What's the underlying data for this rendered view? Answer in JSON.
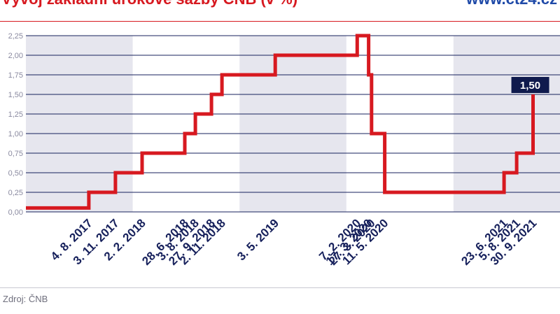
{
  "header": {
    "title": "Vývoj základní úrokové sazby ČNB (v %)",
    "brand": "www.ct24.cz"
  },
  "footer": {
    "source": "Zdroj: ČNB"
  },
  "colors": {
    "line": "#d71920",
    "axis_text": "#8a8aa0",
    "date_labels": "#17215c",
    "grid": "#17215c",
    "shade": "#e6e6ee",
    "badge_bg": "#0f1a4d",
    "badge_text": "#ffffff"
  },
  "chart_data": {
    "type": "line",
    "step": true,
    "title": "Vývoj základní úrokové sazby ČNB (v %)",
    "ylabel": "",
    "xlabel": "",
    "ylim": [
      0,
      2.25
    ],
    "yticks": [
      "0,00",
      "0,25",
      "0,50",
      "0,75",
      "1,00",
      "1,25",
      "1,50",
      "1,75",
      "2,00",
      "2,25"
    ],
    "x_range": [
      "2017-01-01",
      "2021-12-31"
    ],
    "shaded_years": [
      "2017",
      "2019",
      "2021"
    ],
    "grid": true,
    "start_rate": 0.05,
    "changes": [
      {
        "date": "2017-08-04",
        "label": "4. 8. 2017",
        "rate": 0.25
      },
      {
        "date": "2017-11-03",
        "label": "3. 11. 2017",
        "rate": 0.5
      },
      {
        "date": "2018-02-02",
        "label": "2. 2. 2018",
        "rate": 0.75
      },
      {
        "date": "2018-06-28",
        "label": "28. 6. 2018",
        "rate": 1.0
      },
      {
        "date": "2018-08-03",
        "label": "3. 8. 2018",
        "rate": 1.25
      },
      {
        "date": "2018-09-27",
        "label": "27. 9. 2018",
        "rate": 1.5
      },
      {
        "date": "2018-11-02",
        "label": "2. 11. 2018",
        "rate": 1.75
      },
      {
        "date": "2019-05-03",
        "label": "3. 5. 2019",
        "rate": 2.0
      },
      {
        "date": "2020-02-07",
        "label": "7. 2. 2020",
        "rate": 2.25
      },
      {
        "date": "2020-03-17",
        "label": "17. 3. 2020",
        "rate": 1.75
      },
      {
        "date": "2020-03-27",
        "label": "27. 3. 2020",
        "rate": 1.0
      },
      {
        "date": "2020-05-11",
        "label": "11. 5. 2020",
        "rate": 0.25
      },
      {
        "date": "2021-06-23",
        "label": "23. 6. 2021",
        "rate": 0.5
      },
      {
        "date": "2021-08-05",
        "label": "5. 8. 2021",
        "rate": 0.75
      },
      {
        "date": "2021-09-30",
        "label": "30. 9. 2021",
        "rate": 1.5
      }
    ],
    "end_label": "1,50"
  }
}
